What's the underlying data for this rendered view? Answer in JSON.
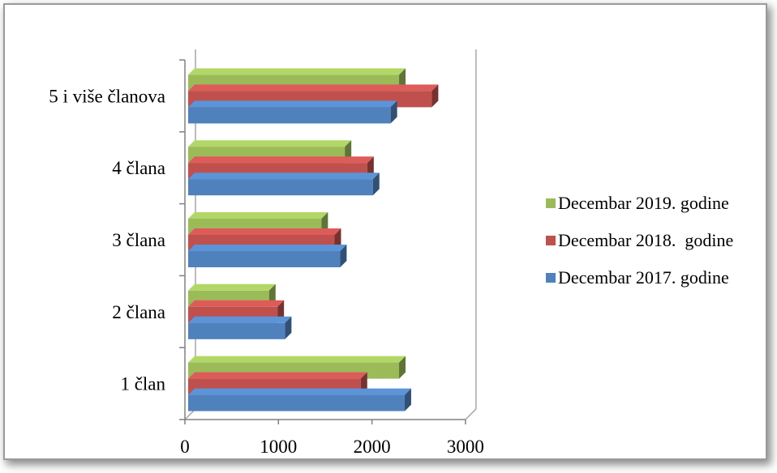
{
  "chart_data": {
    "type": "bar",
    "orientation": "horizontal",
    "three_d": true,
    "categories": [
      "1 član",
      "2 člana",
      "3 člana",
      "4 člana",
      "5 i više članova"
    ],
    "series": [
      {
        "name": "Decembar 2017. godine",
        "color": "#4F81BD",
        "values": [
          2350,
          1070,
          1660,
          2010,
          2200
        ]
      },
      {
        "name": "Decembar 2018.  godine",
        "color": "#C0504D",
        "values": [
          1880,
          990,
          1600,
          1950,
          2640
        ]
      },
      {
        "name": "Decembar 2019. godine",
        "color": "#9BBB59",
        "values": [
          2290,
          900,
          1460,
          1710,
          2290
        ]
      }
    ],
    "x_ticks": [
      "0",
      "1000",
      "2000",
      "3000"
    ],
    "xlim": [
      0,
      3000
    ],
    "legend_position": "right",
    "grid": false
  }
}
